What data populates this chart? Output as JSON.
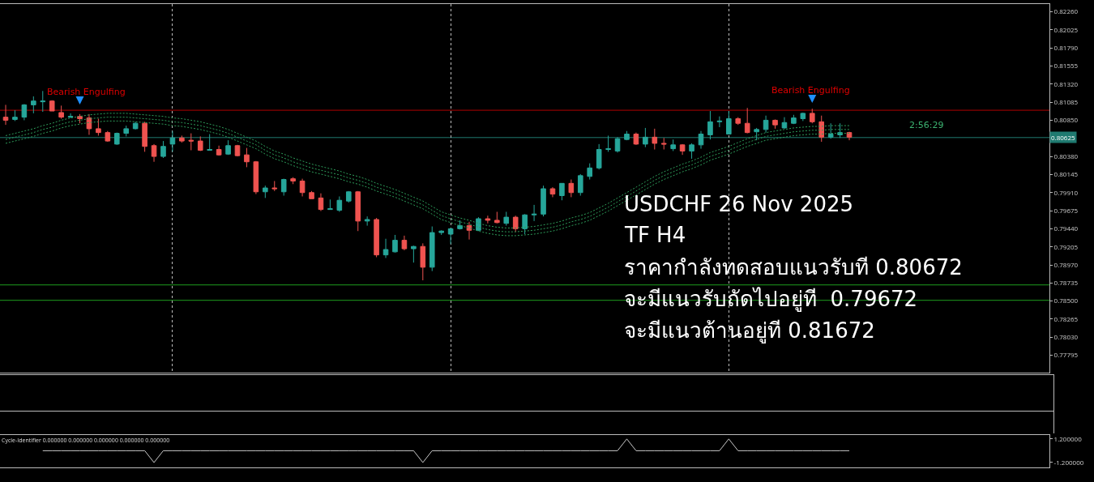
{
  "chart_data": [
    {
      "type": "candlestick",
      "tick_labels": "y",
      "line_style": "dotted",
      "grid": "x",
      "ylim": [
        0.7757,
        0.8236
      ],
      "yticks": [
        {
          "value": 0.8226,
          "label": "0.82260"
        },
        0.82025,
        {
          "value": 0.8179,
          "label": "0.81790"
        },
        0.81555,
        {
          "value": 0.8132,
          "label": "0.81320"
        },
        0.81085,
        {
          "value": 0.8085,
          "label": "0.80850"
        },
        {
          "value": 0.8038,
          "label": "0.80380"
        },
        0.80145,
        {
          "value": 0.7991,
          "label": "0.79910"
        },
        0.79675,
        {
          "value": 0.7944,
          "label": "0.79440"
        },
        0.79205,
        {
          "value": 0.7897,
          "label": "0.78970"
        },
        0.78735,
        {
          "value": 0.785,
          "label": "0.78500"
        },
        0.78265,
        {
          "value": 0.7803,
          "label": "0.78030"
        },
        0.77795
      ],
      "categories": [
        null,
        null,
        null,
        null,
        null,
        null,
        null,
        null,
        null,
        null,
        null,
        null,
        null,
        null,
        null,
        null,
        null,
        null,
        null,
        null,
        null,
        null,
        null,
        null,
        null,
        null,
        null,
        null,
        null,
        null,
        null,
        null,
        null,
        null,
        null,
        null,
        null,
        null,
        null,
        null,
        null,
        null,
        null,
        null,
        null,
        null,
        null,
        null,
        null,
        null,
        null,
        null,
        null,
        null,
        null,
        null,
        null,
        null,
        null,
        null,
        null,
        null,
        null,
        null,
        null,
        null,
        null,
        null,
        null,
        null,
        null,
        null,
        null,
        null,
        null,
        null,
        null,
        null,
        null,
        null,
        null,
        null,
        null,
        null,
        null,
        null,
        null,
        null,
        null,
        null,
        null,
        null
      ],
      "ohlc": [
        [
          0.8089,
          0.8105,
          0.8079,
          0.8085
        ],
        [
          0.8086,
          0.8098,
          0.8084,
          0.8089
        ],
        [
          0.8089,
          0.8106,
          0.8085,
          0.8105
        ],
        [
          0.8105,
          0.8116,
          0.8094,
          0.811
        ],
        [
          0.8109,
          0.8123,
          0.8096,
          0.811
        ],
        [
          0.811,
          0.8111,
          0.8097,
          0.8097
        ],
        [
          0.8095,
          0.8104,
          0.8087,
          0.8089
        ],
        [
          0.8089,
          0.8094,
          0.8088,
          0.809
        ],
        [
          0.809,
          0.8093,
          0.8081,
          0.8087
        ],
        [
          0.8088,
          0.8093,
          0.8066,
          0.8074
        ],
        [
          0.8074,
          0.8087,
          0.8065,
          0.8069
        ],
        [
          0.8069,
          0.8071,
          0.8057,
          0.8058
        ],
        [
          0.8054,
          0.8069,
          0.8053,
          0.8068
        ],
        [
          0.8068,
          0.8078,
          0.8064,
          0.8074
        ],
        [
          0.8074,
          0.8083,
          0.8073,
          0.8081
        ],
        [
          0.8081,
          0.8083,
          0.8044,
          0.8051
        ],
        [
          0.8052,
          0.8054,
          0.8031,
          0.8038
        ],
        [
          0.8038,
          0.8058,
          0.8036,
          0.8051
        ],
        [
          0.8054,
          0.8071,
          0.8044,
          0.8062
        ],
        [
          0.8062,
          0.8065,
          0.8056,
          0.8058
        ],
        [
          0.8059,
          0.8068,
          0.8046,
          0.8058
        ],
        [
          0.8058,
          0.8064,
          0.8045,
          0.8046
        ],
        [
          0.8046,
          0.8067,
          0.8046,
          0.8047
        ],
        [
          0.8047,
          0.8052,
          0.8039,
          0.804
        ],
        [
          0.8041,
          0.8059,
          0.804,
          0.8052
        ],
        [
          0.8052,
          0.8053,
          0.8038,
          0.8039
        ],
        [
          0.804,
          0.8049,
          0.8024,
          0.8031
        ],
        [
          0.8031,
          0.8032,
          0.7989,
          0.7992
        ],
        [
          0.7992,
          0.8,
          0.7984,
          0.7997
        ],
        [
          0.7997,
          0.8006,
          0.7993,
          0.7996
        ],
        [
          0.7992,
          0.8009,
          0.7987,
          0.8008
        ],
        [
          0.8009,
          0.8011,
          0.8002,
          0.8006
        ],
        [
          0.8006,
          0.8009,
          0.7986,
          0.7991
        ],
        [
          0.7991,
          0.7993,
          0.7983,
          0.7983
        ],
        [
          0.7984,
          0.799,
          0.7967,
          0.7969
        ],
        [
          0.7969,
          0.7982,
          0.7969,
          0.797
        ],
        [
          0.7968,
          0.7986,
          0.7966,
          0.7981
        ],
        [
          0.798,
          0.7993,
          0.7978,
          0.7992
        ],
        [
          0.7992,
          0.7993,
          0.7941,
          0.7954
        ],
        [
          0.7954,
          0.796,
          0.7948,
          0.7956
        ],
        [
          0.7956,
          0.7958,
          0.7907,
          0.791
        ],
        [
          0.791,
          0.7931,
          0.7906,
          0.7917
        ],
        [
          0.7914,
          0.7936,
          0.7913,
          0.7929
        ],
        [
          0.7929,
          0.7935,
          0.7916,
          0.7918
        ],
        [
          0.7918,
          0.7922,
          0.79,
          0.7921
        ],
        [
          0.7921,
          0.7925,
          0.7877,
          0.7894
        ],
        [
          0.7894,
          0.7947,
          0.7889,
          0.7939
        ],
        [
          0.7939,
          0.7942,
          0.7936,
          0.7941
        ],
        [
          0.7937,
          0.7945,
          0.7924,
          0.7944
        ],
        [
          0.7944,
          0.7955,
          0.7943,
          0.7948
        ],
        [
          0.7948,
          0.7953,
          0.793,
          0.7942
        ],
        [
          0.7942,
          0.7959,
          0.7941,
          0.7957
        ],
        [
          0.7957,
          0.7961,
          0.7951,
          0.7955
        ],
        [
          0.7955,
          0.7966,
          0.7951,
          0.7952
        ],
        [
          0.7951,
          0.7966,
          0.7948,
          0.7959
        ],
        [
          0.7959,
          0.7961,
          0.794,
          0.7944
        ],
        [
          0.7944,
          0.7963,
          0.7937,
          0.7962
        ],
        [
          0.7962,
          0.7975,
          0.7954,
          0.7963
        ],
        [
          0.7963,
          0.8,
          0.796,
          0.7996
        ],
        [
          0.7996,
          0.7998,
          0.7985,
          0.7989
        ],
        [
          0.7987,
          0.8003,
          0.7981,
          0.8003
        ],
        [
          0.8003,
          0.8008,
          0.7985,
          0.7991
        ],
        [
          0.7991,
          0.8015,
          0.7987,
          0.8013
        ],
        [
          0.8012,
          0.8029,
          0.8008,
          0.8023
        ],
        [
          0.8023,
          0.8054,
          0.8021,
          0.8047
        ],
        [
          0.8047,
          0.8065,
          0.8044,
          0.8048
        ],
        [
          0.8045,
          0.8063,
          0.8043,
          0.8061
        ],
        [
          0.806,
          0.8071,
          0.8059,
          0.8067
        ],
        [
          0.8067,
          0.8069,
          0.8053,
          0.8054
        ],
        [
          0.8054,
          0.8075,
          0.805,
          0.8063
        ],
        [
          0.8063,
          0.8074,
          0.8047,
          0.8055
        ],
        [
          0.8055,
          0.8062,
          0.8047,
          0.8054
        ],
        [
          0.8048,
          0.806,
          0.8045,
          0.8053
        ],
        [
          0.8053,
          0.8054,
          0.804,
          0.8045
        ],
        [
          0.8045,
          0.8055,
          0.8035,
          0.8053
        ],
        [
          0.8053,
          0.8071,
          0.8048,
          0.8067
        ],
        [
          0.8066,
          0.8097,
          0.806,
          0.8083
        ],
        [
          0.8083,
          0.809,
          0.8076,
          0.8084
        ],
        [
          0.8067,
          0.8097,
          0.8067,
          0.8087
        ],
        [
          0.8087,
          0.8089,
          0.8079,
          0.8081
        ],
        [
          0.8081,
          0.8101,
          0.8068,
          0.8069
        ],
        [
          0.807,
          0.8075,
          0.8059,
          0.8073
        ],
        [
          0.8073,
          0.8091,
          0.8069,
          0.8085
        ],
        [
          0.8085,
          0.8086,
          0.8074,
          0.8079
        ],
        [
          0.8075,
          0.8089,
          0.8074,
          0.8082
        ],
        [
          0.8081,
          0.8092,
          0.808,
          0.8088
        ],
        [
          0.8087,
          0.8095,
          0.8084,
          0.8094
        ],
        [
          0.8094,
          0.81,
          0.8081,
          0.8083
        ],
        [
          0.8083,
          0.8091,
          0.8057,
          0.8063
        ],
        [
          0.8063,
          0.8081,
          0.8061,
          0.8067
        ],
        [
          0.8066,
          0.8081,
          0.8062,
          0.8069
        ],
        [
          0.8069,
          0.807,
          0.8059,
          0.8063
        ]
      ],
      "series": [
        {
          "type": "line",
          "color": "#2e9e5b",
          "values": [
            0.8065,
            0.8068,
            0.8071,
            0.8074,
            0.8078,
            0.8081,
            0.8085,
            0.8088,
            0.809,
            0.8092,
            0.8093,
            0.8094,
            0.8094,
            0.8094,
            0.8093,
            0.8092,
            0.8091,
            0.809,
            0.8088,
            0.8087,
            0.8085,
            0.8083,
            0.808,
            0.8077,
            0.8073,
            0.8068,
            0.8063,
            0.8058,
            0.8051,
            0.8045,
            0.8041,
            0.8036,
            0.8032,
            0.8028,
            0.8025,
            0.8022,
            0.8019,
            0.8015,
            0.8012,
            0.8008,
            0.8003,
            0.7999,
            0.7995,
            0.799,
            0.7985,
            0.798,
            0.7973,
            0.7966,
            0.7962,
            0.7958,
            0.7955,
            0.7951,
            0.7948,
            0.7946,
            0.7945,
            0.7945,
            0.7946,
            0.7947,
            0.7949,
            0.7951,
            0.7954,
            0.7958,
            0.7961,
            0.7965,
            0.7971,
            0.7977,
            0.7984,
            0.7991,
            0.7998,
            0.8005,
            0.8012,
            0.8018,
            0.8023,
            0.8028,
            0.8032,
            0.8037,
            0.8043,
            0.8047,
            0.8051,
            0.8056,
            0.8061,
            0.8065,
            0.8069,
            0.8071,
            0.8073,
            0.8075,
            0.8076,
            0.8077,
            0.8077,
            0.8078,
            0.8078,
            0.8078
          ]
        },
        {
          "type": "line",
          "color": "#2e9e5b",
          "values": [
            0.806,
            0.8063,
            0.8066,
            0.8069,
            0.8073,
            0.8076,
            0.808,
            0.8083,
            0.8085,
            0.8087,
            0.8088,
            0.8089,
            0.8089,
            0.8089,
            0.8088,
            0.8087,
            0.8086,
            0.8085,
            0.8083,
            0.8082,
            0.808,
            0.8078,
            0.8075,
            0.8072,
            0.8068,
            0.8063,
            0.8058,
            0.8053,
            0.8046,
            0.804,
            0.8036,
            0.8031,
            0.8027,
            0.8023,
            0.802,
            0.8017,
            0.8014,
            0.801,
            0.8007,
            0.8003,
            0.7998,
            0.7994,
            0.799,
            0.7985,
            0.798,
            0.7975,
            0.7968,
            0.7961,
            0.7957,
            0.7953,
            0.795,
            0.7946,
            0.7943,
            0.7941,
            0.794,
            0.794,
            0.7941,
            0.7942,
            0.7944,
            0.7946,
            0.7949,
            0.7953,
            0.7956,
            0.796,
            0.7966,
            0.7972,
            0.7979,
            0.7986,
            0.7993,
            0.8,
            0.8007,
            0.8013,
            0.8018,
            0.8023,
            0.8027,
            0.8032,
            0.8038,
            0.8042,
            0.8046,
            0.8051,
            0.8056,
            0.806,
            0.8064,
            0.8066,
            0.8068,
            0.807,
            0.8071,
            0.8072,
            0.8072,
            0.8073,
            0.8073,
            0.8073
          ]
        },
        {
          "type": "line",
          "color": "#2e9e5b",
          "values": [
            0.8055,
            0.8058,
            0.8061,
            0.8064,
            0.8068,
            0.8071,
            0.8075,
            0.8078,
            0.808,
            0.8082,
            0.8083,
            0.8084,
            0.8084,
            0.8084,
            0.8083,
            0.8082,
            0.8081,
            0.808,
            0.8078,
            0.8077,
            0.8075,
            0.8073,
            0.807,
            0.8067,
            0.8063,
            0.8058,
            0.8053,
            0.8048,
            0.8041,
            0.8035,
            0.8031,
            0.8026,
            0.8022,
            0.8018,
            0.8015,
            0.8012,
            0.8009,
            0.8005,
            0.8002,
            0.7998,
            0.7993,
            0.7989,
            0.7985,
            0.798,
            0.7975,
            0.797,
            0.7963,
            0.7956,
            0.7952,
            0.7948,
            0.7945,
            0.7941,
            0.7938,
            0.7936,
            0.7935,
            0.7935,
            0.7936,
            0.7937,
            0.7939,
            0.7941,
            0.7944,
            0.7948,
            0.7951,
            0.7955,
            0.7961,
            0.7967,
            0.7974,
            0.7981,
            0.7988,
            0.7995,
            0.8002,
            0.8008,
            0.8013,
            0.8018,
            0.8022,
            0.8027,
            0.8033,
            0.8037,
            0.8041,
            0.8046,
            0.8051,
            0.8055,
            0.8059,
            0.8061,
            0.8063,
            0.8065,
            0.8066,
            0.8067,
            0.8067,
            0.8068,
            0.8068,
            0.8068
          ]
        }
      ],
      "ref_lines": [
        {
          "axis": "y",
          "value": 0.80625,
          "label": "0.80625",
          "color": "#1f7a70"
        },
        {
          "axis": "y",
          "value": 0.8098,
          "color": "#b00000"
        },
        {
          "axis": "y",
          "value": 0.7871,
          "color": "#1e9e1e"
        },
        {
          "axis": "y",
          "value": 0.7851,
          "color": "#1e9e1e"
        }
      ],
      "annotations": [
        "Bearish Engulfing",
        "Bearish Engulfing",
        "2:56:29",
        "USDCHF 26 Nov 2025",
        "TF H4",
        "ราคากำลังทดสอบแนวรับที 0.80672",
        "จะมีแนวรับถัดไปอยู่ที  0.79672",
        "จะมีแนวต้านอยู่ที 0.81672"
      ]
    },
    {
      "type": "line",
      "title": "Cycle-Identifier 0.000000 0.000000 0.000000 0.000000 0.000000",
      "tick_labels": "y",
      "ylim": [
        -1.7,
        1.6
      ],
      "yticks": [
        {
          "value": 1.2,
          "label": "1.200000"
        },
        {
          "value": -1.2,
          "label": "-1.200000"
        }
      ],
      "categories": [
        null,
        null,
        null,
        null,
        null,
        null,
        null,
        null,
        null,
        null,
        null,
        null,
        null,
        null,
        null,
        null,
        null,
        null,
        null,
        null,
        null,
        null,
        null,
        null,
        null,
        null,
        null,
        null,
        null,
        null,
        null,
        null,
        null,
        null,
        null,
        null,
        null,
        null,
        null,
        null,
        null,
        null,
        null,
        null,
        null,
        null,
        null,
        null,
        null,
        null,
        null,
        null,
        null,
        null,
        null,
        null,
        null,
        null,
        null,
        null,
        null,
        null,
        null,
        null,
        null,
        null,
        null,
        null,
        null,
        null,
        null,
        null,
        null,
        null,
        null,
        null,
        null,
        null,
        null,
        null,
        null,
        null,
        null,
        null,
        null,
        null,
        null,
        null,
        null,
        null,
        null,
        null
      ],
      "series": [
        {
          "color": "#c8c8c8",
          "values": [
            null,
            null,
            null,
            null,
            0,
            0,
            0,
            0,
            0,
            0,
            0,
            0,
            0,
            0,
            0,
            0,
            -1.2,
            0,
            0,
            0,
            0,
            0,
            0,
            0,
            0,
            0,
            0,
            0,
            0,
            0,
            0,
            0,
            0,
            0,
            0,
            0,
            0,
            0,
            0,
            0,
            0,
            0,
            0,
            0,
            0,
            -1.2,
            0,
            0,
            0,
            0,
            0,
            0,
            0,
            0,
            0,
            0,
            0,
            0,
            0,
            0,
            0,
            0,
            0,
            0,
            0,
            0,
            0,
            1.2,
            0,
            0,
            0,
            0,
            0,
            0,
            0,
            0,
            0,
            0,
            1.2,
            0,
            0,
            0,
            0,
            0,
            0,
            0,
            0,
            0,
            0,
            0,
            0,
            0
          ]
        }
      ]
    }
  ]
}
